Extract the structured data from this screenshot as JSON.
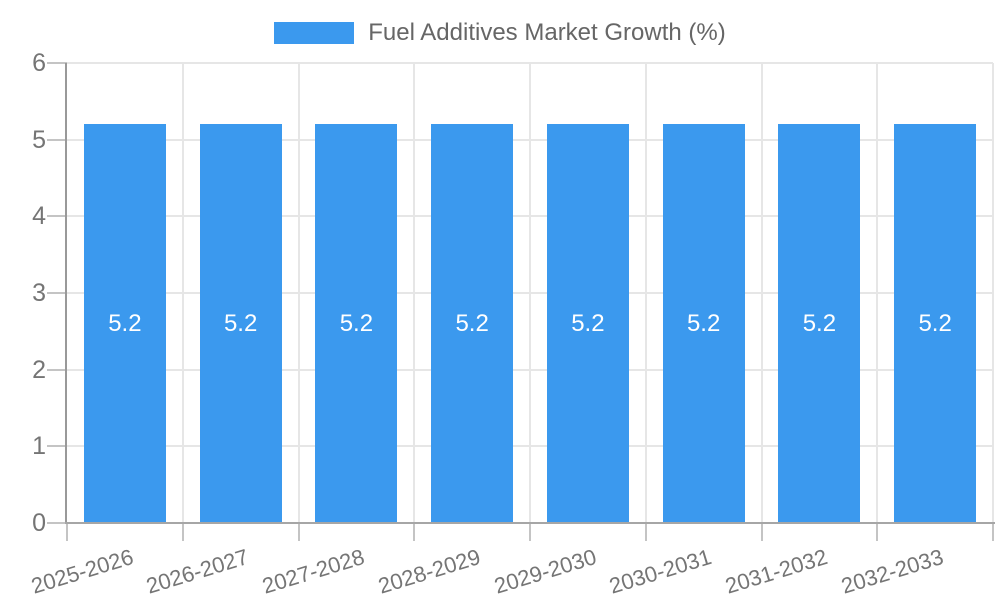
{
  "legend": {
    "label": "Fuel Additives Market Growth (%)"
  },
  "colors": {
    "bar": "#3B99EE",
    "grid": "#E6E6E6",
    "axis": "#999999",
    "tick": "#C4C4C4",
    "tick_label": "#757575",
    "title": "#666666",
    "bar_label": "#FFFFFF",
    "background": "#FFFFFF"
  },
  "chart_data": {
    "type": "bar",
    "title": "Fuel Additives Market Growth (%)",
    "categories": [
      "2025-2026",
      "2026-2027",
      "2027-2028",
      "2028-2029",
      "2029-2030",
      "2030-2031",
      "2031-2032",
      "2032-2033"
    ],
    "values": [
      5.2,
      5.2,
      5.2,
      5.2,
      5.2,
      5.2,
      5.2,
      5.2
    ],
    "bar_labels": [
      "5.2",
      "5.2",
      "5.2",
      "5.2",
      "5.2",
      "5.2",
      "5.2",
      "5.2"
    ],
    "xlabel": "",
    "ylabel": "",
    "ylim": [
      0,
      6
    ],
    "yticks": [
      0,
      1,
      2,
      3,
      4,
      5,
      6
    ],
    "ytick_labels": [
      "0",
      "1",
      "2",
      "3",
      "4",
      "5",
      "6"
    ],
    "grid": true,
    "legend_position": "top",
    "bar_label_position": "center"
  }
}
